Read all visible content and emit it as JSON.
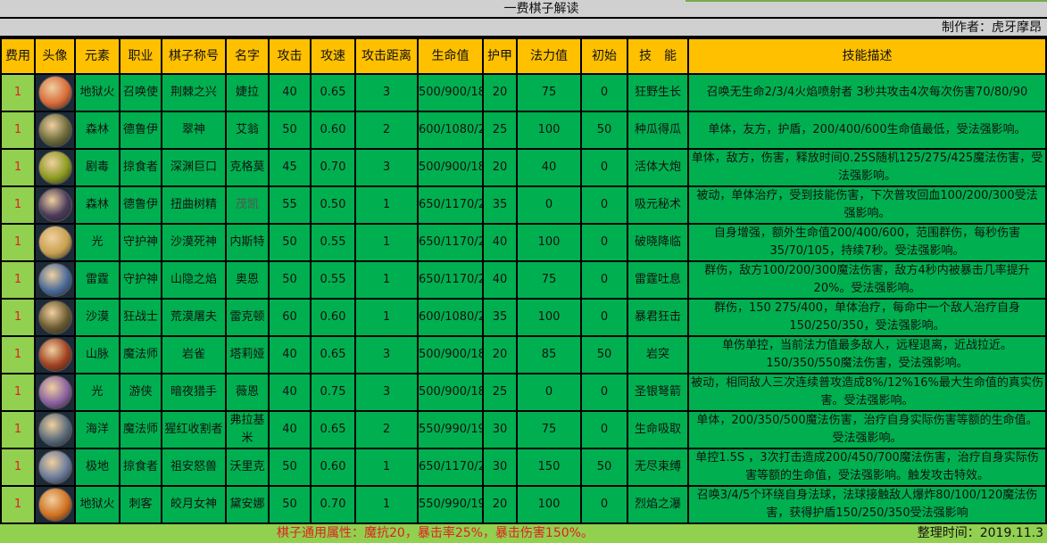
{
  "title": "一费棋子解读",
  "author": "制作者：虎牙摩昂",
  "headers": [
    "费用",
    "头像",
    "元素",
    "职业",
    "棋子称号",
    "名字",
    "攻击",
    "攻速",
    "攻击距离",
    "生命值",
    "护甲",
    "法力值",
    "初始",
    "技　能",
    "技能描述"
  ],
  "rows": [
    {
      "cost": "1",
      "element": "地狱火",
      "class": "召唤使",
      "title": "荆棘之兴",
      "name": "婕拉",
      "attack": "40",
      "speed": "0.65",
      "range": "3",
      "hp": "500/900/1800",
      "armor": "20",
      "mana": "75",
      "start": "0",
      "skill": "狂野生长",
      "desc": "召唤无生命2/3/4火焰喷射者 3秒共攻击4次每次伤害70/80/90",
      "color": "#d86a3a"
    },
    {
      "cost": "1",
      "element": "森林",
      "class": "德鲁伊",
      "title": "翠神",
      "name": "艾翁",
      "attack": "50",
      "speed": "0.60",
      "range": "2",
      "hp": "600/1080/2160",
      "armor": "25",
      "mana": "100",
      "start": "50",
      "skill": "种瓜得瓜",
      "desc": "单体，友方，护盾，200/400/600生命值最低，受法强影响。",
      "color": "#6b6a3a"
    },
    {
      "cost": "1",
      "element": "剧毒",
      "class": "掠食者",
      "title": "深渊巨口",
      "name": "克格莫",
      "attack": "45",
      "speed": "0.70",
      "range": "3",
      "hp": "500/900/1800",
      "armor": "20",
      "mana": "40",
      "start": "0",
      "skill": "活体大炮",
      "desc": "单体，敌方，伤害，释放时间0.25S随机125/275/425魔法伤害，受法强影响。",
      "color": "#8a9a20"
    },
    {
      "cost": "1",
      "element": "森林",
      "class": "德鲁伊",
      "title": "扭曲树精",
      "name": "茂凯",
      "attack": "55",
      "speed": "0.50",
      "range": "1",
      "hp": "650/1170/2340",
      "armor": "35",
      "mana": "0",
      "start": "0",
      "skill": "吸元秘术",
      "desc": "被动，单体治疗，受到技能伤害，下次普攻回血100/200/300受法强影响。",
      "color": "#4a3a5a"
    },
    {
      "cost": "1",
      "element": "光",
      "class": "守护神",
      "title": "沙漠死神",
      "name": "内斯特",
      "attack": "50",
      "speed": "0.55",
      "range": "1",
      "hp": "650/1170/2340",
      "armor": "40",
      "mana": "100",
      "start": "0",
      "skill": "破晓降临",
      "desc": "自身增强，额外生命值200/400/600，范围群伤，每秒伤害35/70/105，持续7秒。受法强影响。",
      "color": "#c8a050"
    },
    {
      "cost": "1",
      "element": "雷霆",
      "class": "守护神",
      "title": "山隐之焰",
      "name": "奥恩",
      "attack": "50",
      "speed": "0.55",
      "range": "1",
      "hp": "650/1170/2340",
      "armor": "40",
      "mana": "75",
      "start": "0",
      "skill": "雷霆吐息",
      "desc": "群伤，敌方100/200/300魔法伤害，敌方4秒内被暴击几率提升20%。受法强影响。",
      "color": "#4a6a9a"
    },
    {
      "cost": "1",
      "element": "沙漠",
      "class": "狂战士",
      "title": "荒漠屠夫",
      "name": "雷克顿",
      "attack": "60",
      "speed": "0.60",
      "range": "1",
      "hp": "600/1080/2160",
      "armor": "35",
      "mana": "100",
      "start": "0",
      "skill": "暴君狂击",
      "desc": "群伤，150 275/400，单体治疗，每命中一个敌人治疗自身150/250/350，受法强影响。",
      "color": "#6a5a30"
    },
    {
      "cost": "1",
      "element": "山脉",
      "class": "魔法师",
      "title": "岩雀",
      "name": "塔莉娅",
      "attack": "40",
      "speed": "0.65",
      "range": "3",
      "hp": "500/900/1800",
      "armor": "20",
      "mana": "85",
      "start": "50",
      "skill": "岩突",
      "desc": "单伤单控，当前法力值最多敌人，远程退离，近战拉近。150/350/550魔法伤害，受法强影响。",
      "color": "#a04020"
    },
    {
      "cost": "1",
      "element": "光",
      "class": "游侠",
      "title": "暗夜猎手",
      "name": "薇恩",
      "attack": "40",
      "speed": "0.75",
      "range": "3",
      "hp": "500/900/1800",
      "armor": "25",
      "mana": "0",
      "start": "0",
      "skill": "圣银弩箭",
      "desc": "被动，相同敌人三次连续普攻造成8%/12%16%最大生命值的真实伤害。受法强影响。",
      "color": "#8a60a0"
    },
    {
      "cost": "1",
      "element": "海洋",
      "class": "魔法师",
      "title": "猩红收割者",
      "name": "弗拉基米",
      "attack": "40",
      "speed": "0.65",
      "range": "2",
      "hp": "550/990/1980",
      "armor": "30",
      "mana": "75",
      "start": "0",
      "skill": "生命吸取",
      "desc": "单体，200/350/500魔法伤害，治疗自身实际伤害等额的生命值。受法强影响。",
      "color": "#5a6a7a"
    },
    {
      "cost": "1",
      "element": "极地",
      "class": "掠食者",
      "title": "祖安怒兽",
      "name": "沃里克",
      "attack": "50",
      "speed": "0.60",
      "range": "1",
      "hp": "650/1170/2340",
      "armor": "30",
      "mana": "150",
      "start": "50",
      "skill": "无尽束缚",
      "desc": "单控1.5S ，3次打击造成200/450/700魔法伤害，治疗自身实际伤害等额的生命值，受法强影响。触发攻击特效。",
      "color": "#6a7a9a"
    },
    {
      "cost": "1",
      "element": "地狱火",
      "class": "刺客",
      "title": "皎月女神",
      "name": "黛安娜",
      "attack": "50",
      "speed": "0.70",
      "range": "1",
      "hp": "550/990/1980",
      "armor": "20",
      "mana": "100",
      "start": "0",
      "skill": "烈焰之瀑",
      "desc": "召唤3/4/5个环绕自身法球，法球接触敌人爆炸80/100/120魔法伤害，获得护盾150/250/350受法强影响",
      "color": "#d07020"
    }
  ],
  "footer": {
    "common": "棋子通用属性：魔抗20，暴击率25%，暴击伤害150%。",
    "date": "整理时间：2019.11.3"
  },
  "colors": {
    "header": "#ffc000",
    "cell": "#00b050",
    "cost_cell": "#92d050",
    "cost_text": "#e02020"
  }
}
